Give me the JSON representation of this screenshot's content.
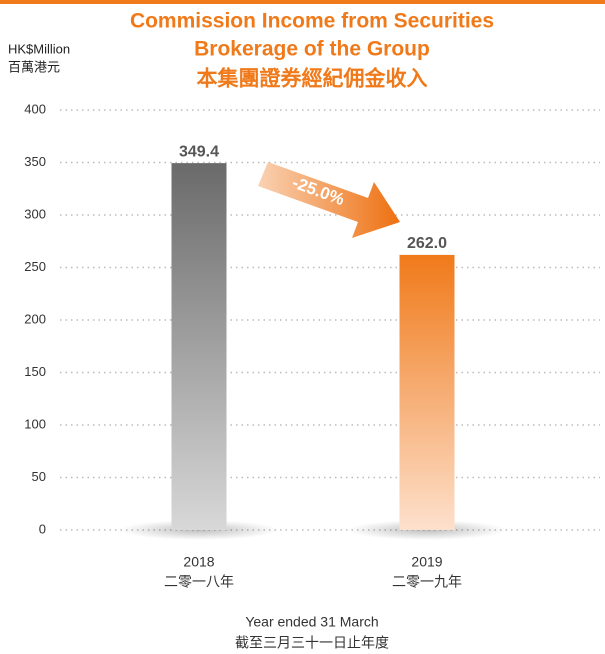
{
  "chart_data": {
    "type": "bar",
    "title": "Commission Income from Securities",
    "title_line2": "Brokerage of the Group",
    "title_zh": "本集團證券經紀佣金收入",
    "y_label": "HK$Million",
    "y_label_zh": "百萬港元",
    "x_label": "Year ended 31 March",
    "x_label_zh": "截至三月三十一日止年度",
    "categories": [
      "2018",
      "2019"
    ],
    "categories_zh": [
      "二零一八年",
      "二零一九年"
    ],
    "values": [
      349.4,
      262
    ],
    "value_labels": [
      "349.4",
      "262.0"
    ],
    "colors": [
      "#8a8a8a",
      "#f07a1a"
    ],
    "annotation": "-25.0%",
    "ylim": [
      0,
      400
    ],
    "yticks": [
      0,
      50,
      100,
      150,
      200,
      250,
      300,
      350,
      400
    ],
    "grid": true
  }
}
